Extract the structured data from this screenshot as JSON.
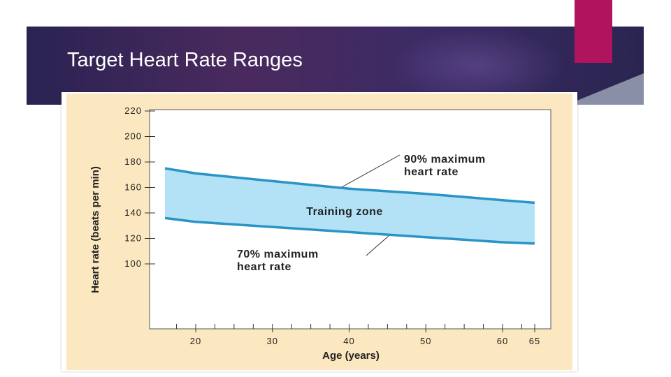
{
  "slide": {
    "title": "Target Heart Rate Ranges"
  },
  "colors": {
    "band_fill": "#b3e2f7",
    "band_line": "#2a94c6",
    "figure_background": "#fce8c0",
    "accent": "#b0145f",
    "title_bar": "#2e2456"
  },
  "chart_data": {
    "type": "area",
    "xlabel": "Age (years)",
    "ylabel": "Heart rate (beats per min)",
    "xlim": [
      15,
      66
    ],
    "ylim": [
      70,
      220
    ],
    "x_ticks": [
      20,
      30,
      40,
      50,
      60,
      65
    ],
    "y_ticks": [
      100,
      120,
      140,
      160,
      180,
      200,
      220
    ],
    "x": [
      15,
      20,
      30,
      40,
      50,
      60,
      65
    ],
    "series": [
      {
        "name": "90% maximum heart rate",
        "values": [
          175,
          171,
          165,
          159,
          155,
          150,
          148
        ]
      },
      {
        "name": "70% maximum heart rate",
        "values": [
          136,
          133,
          129,
          125,
          121,
          117,
          116
        ]
      }
    ],
    "annotations": [
      {
        "line1": "90% maximum",
        "line2": "heart rate"
      },
      {
        "line1": "70% maximum",
        "line2": "heart rate"
      },
      {
        "text": "Training zone"
      }
    ]
  }
}
